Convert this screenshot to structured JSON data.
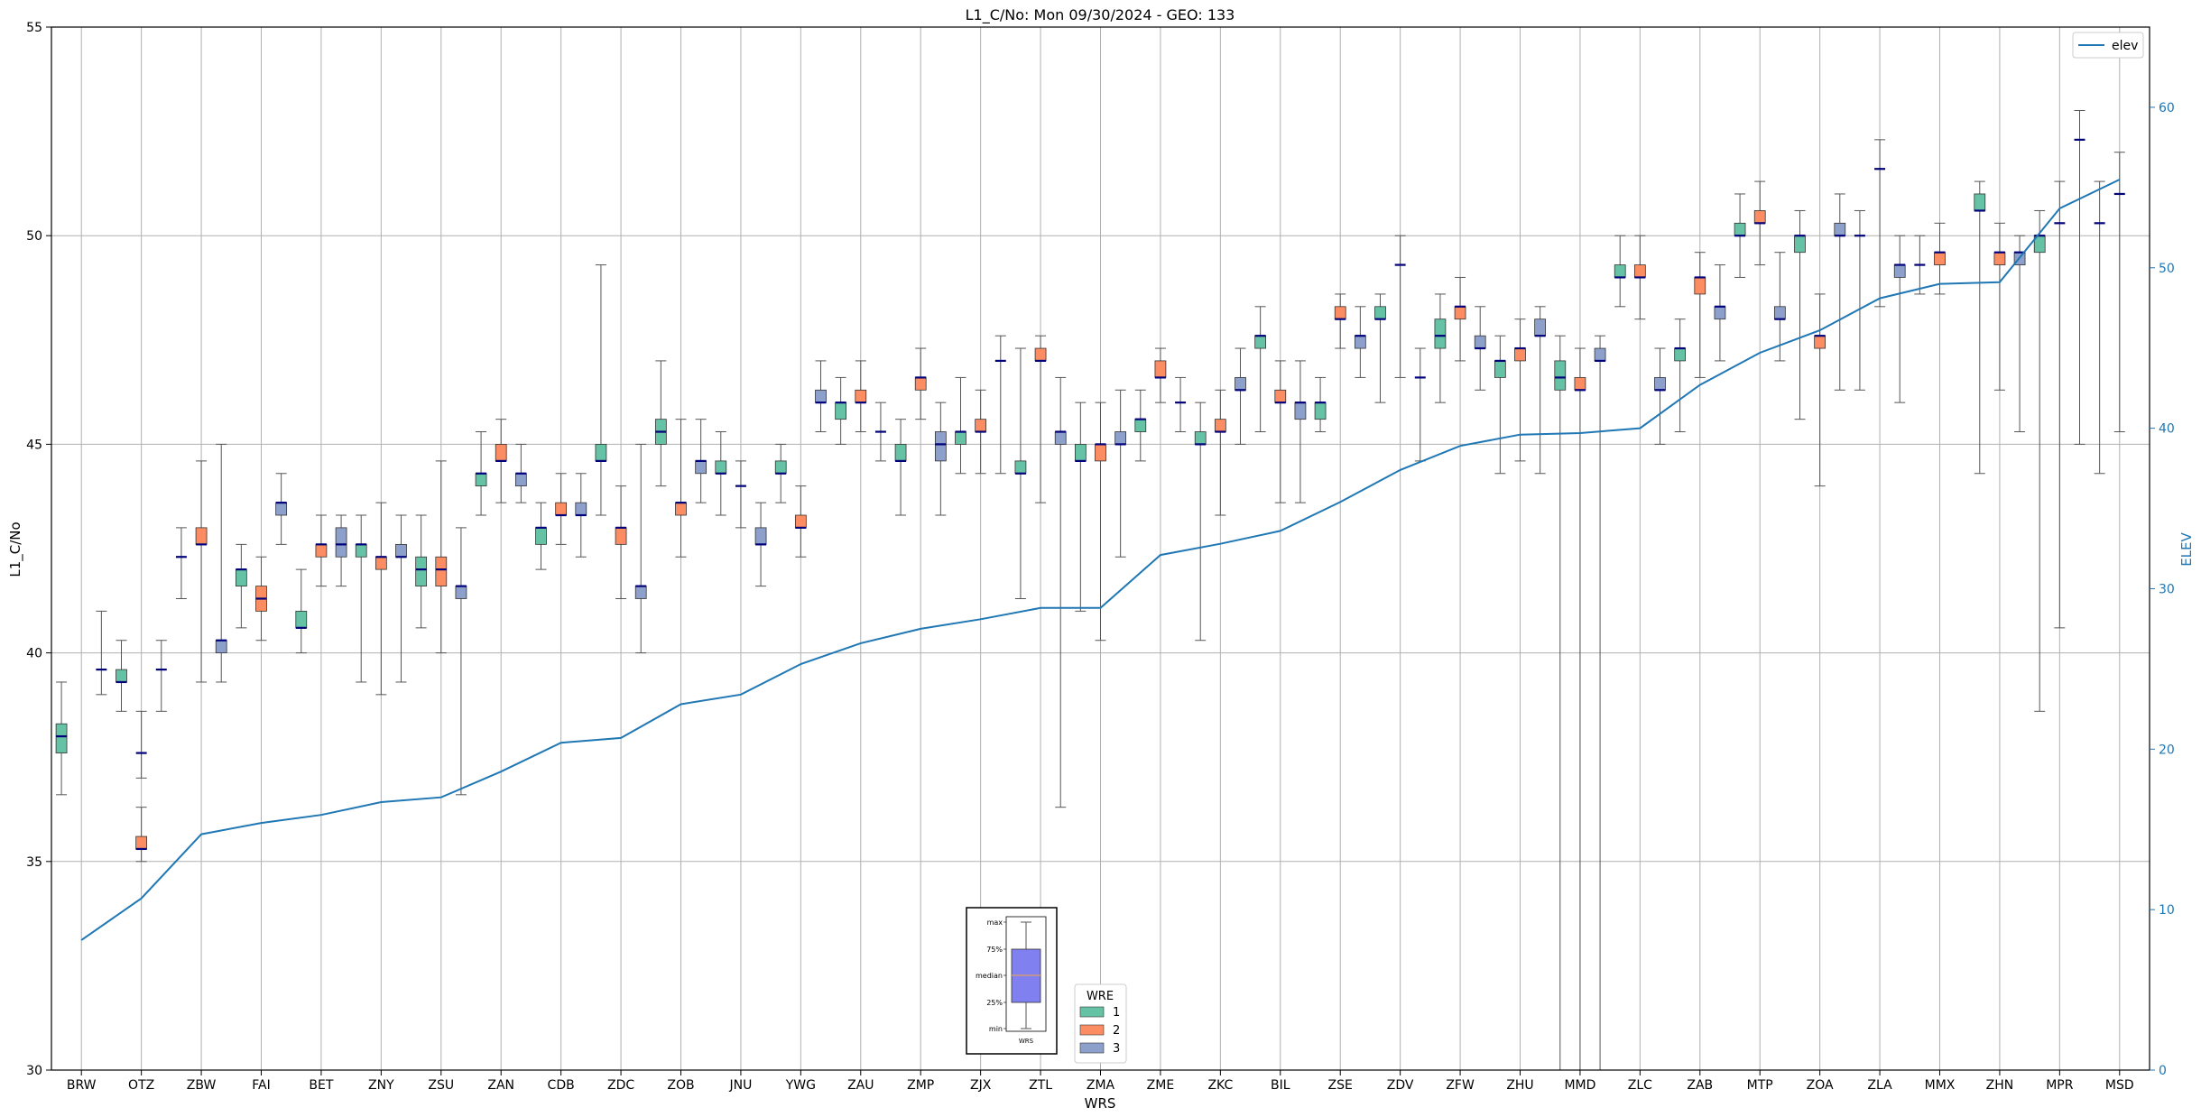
{
  "chart_data": {
    "type": "box",
    "title": "L1_C/No: Mon 09/30/2024 - GEO: 133",
    "xlabel": "WRS",
    "ylabel": "L1_C/No",
    "y2label": "ELEV",
    "ylim": [
      30,
      55
    ],
    "y2lim": [
      0,
      65
    ],
    "yticks": [
      30,
      35,
      40,
      45,
      50,
      55
    ],
    "y2ticks": [
      0,
      10,
      20,
      30,
      40,
      50,
      60
    ],
    "grid": true,
    "categories": [
      "BRW",
      "OTZ",
      "ZBW",
      "FAI",
      "BET",
      "ZNY",
      "ZSU",
      "ZAN",
      "CDB",
      "ZDC",
      "ZOB",
      "JNU",
      "YWG",
      "ZAU",
      "ZMP",
      "ZJX",
      "ZTL",
      "ZMA",
      "ZME",
      "ZKC",
      "BIL",
      "ZSE",
      "ZDV",
      "ZFW",
      "ZHU",
      "MMD",
      "ZLC",
      "ZAB",
      "MTP",
      "ZOA",
      "ZLA",
      "MMX",
      "ZHN",
      "MPR",
      "MSD"
    ],
    "wre_colors": {
      "1": "#66c2a5",
      "2": "#fc8d62",
      "3": "#8da0cb"
    },
    "boxes": [
      {
        "station": "BRW",
        "wre": 1,
        "min": 36.6,
        "q1": 37.6,
        "median": 38.0,
        "q3": 38.3,
        "max": 39.3
      },
      {
        "station": "BRW",
        "wre": 3,
        "min": 39.0,
        "q1": 39.6,
        "median": 39.6,
        "q3": 39.6,
        "max": 41.0
      },
      {
        "station": "OTZ",
        "wre": 1,
        "min": 38.6,
        "q1": 39.3,
        "median": 39.3,
        "q3": 39.6,
        "max": 40.3
      },
      {
        "station": "OTZ",
        "wre": 2,
        "min": 37.0,
        "q1": 37.6,
        "median": 37.6,
        "q3": 37.6,
        "max": 38.6
      },
      {
        "station": "OTZ",
        "wre": 2,
        "min": 35.0,
        "q1": 35.3,
        "median": 35.3,
        "q3": 35.6,
        "max": 36.3
      },
      {
        "station": "OTZ",
        "wre": 3,
        "min": 38.6,
        "q1": 39.6,
        "median": 39.6,
        "q3": 39.6,
        "max": 40.3
      },
      {
        "station": "ZBW",
        "wre": 1,
        "min": 41.3,
        "q1": 42.3,
        "median": 42.3,
        "q3": 42.3,
        "max": 43.0
      },
      {
        "station": "ZBW",
        "wre": 2,
        "min": 39.3,
        "q1": 42.6,
        "median": 42.6,
        "q3": 43.0,
        "max": 44.6
      },
      {
        "station": "ZBW",
        "wre": 3,
        "min": 39.3,
        "q1": 40.0,
        "median": 40.3,
        "q3": 40.3,
        "max": 45.0
      },
      {
        "station": "FAI",
        "wre": 1,
        "min": 40.6,
        "q1": 41.6,
        "median": 42.0,
        "q3": 42.0,
        "max": 42.6
      },
      {
        "station": "FAI",
        "wre": 2,
        "min": 40.3,
        "q1": 41.0,
        "median": 41.3,
        "q3": 41.6,
        "max": 42.3
      },
      {
        "station": "FAI",
        "wre": 3,
        "min": 42.6,
        "q1": 43.3,
        "median": 43.6,
        "q3": 43.6,
        "max": 44.3
      },
      {
        "station": "BET",
        "wre": 1,
        "min": 40.0,
        "q1": 40.6,
        "median": 40.6,
        "q3": 41.0,
        "max": 42.0
      },
      {
        "station": "BET",
        "wre": 2,
        "min": 41.6,
        "q1": 42.3,
        "median": 42.6,
        "q3": 42.6,
        "max": 43.3
      },
      {
        "station": "BET",
        "wre": 3,
        "min": 41.6,
        "q1": 42.3,
        "median": 42.6,
        "q3": 43.0,
        "max": 43.3
      },
      {
        "station": "ZNY",
        "wre": 1,
        "min": 39.3,
        "q1": 42.3,
        "median": 42.6,
        "q3": 42.6,
        "max": 43.3
      },
      {
        "station": "ZNY",
        "wre": 2,
        "min": 39.0,
        "q1": 42.0,
        "median": 42.3,
        "q3": 42.3,
        "max": 43.6
      },
      {
        "station": "ZNY",
        "wre": 3,
        "min": 39.3,
        "q1": 42.3,
        "median": 42.3,
        "q3": 42.6,
        "max": 43.3
      },
      {
        "station": "ZSU",
        "wre": 1,
        "min": 40.6,
        "q1": 41.6,
        "median": 42.0,
        "q3": 42.3,
        "max": 43.3
      },
      {
        "station": "ZSU",
        "wre": 2,
        "min": 40.0,
        "q1": 41.6,
        "median": 42.0,
        "q3": 42.3,
        "max": 44.6
      },
      {
        "station": "ZSU",
        "wre": 3,
        "min": 36.6,
        "q1": 41.3,
        "median": 41.6,
        "q3": 41.6,
        "max": 43.0
      },
      {
        "station": "ZAN",
        "wre": 1,
        "min": 43.3,
        "q1": 44.0,
        "median": 44.3,
        "q3": 44.3,
        "max": 45.3
      },
      {
        "station": "ZAN",
        "wre": 2,
        "min": 43.6,
        "q1": 44.6,
        "median": 44.6,
        "q3": 45.0,
        "max": 45.6
      },
      {
        "station": "ZAN",
        "wre": 3,
        "min": 43.6,
        "q1": 44.0,
        "median": 44.3,
        "q3": 44.3,
        "max": 45.0
      },
      {
        "station": "CDB",
        "wre": 1,
        "min": 42.0,
        "q1": 42.6,
        "median": 43.0,
        "q3": 43.0,
        "max": 43.6
      },
      {
        "station": "CDB",
        "wre": 2,
        "min": 42.6,
        "q1": 43.3,
        "median": 43.3,
        "q3": 43.6,
        "max": 44.3
      },
      {
        "station": "CDB",
        "wre": 3,
        "min": 42.3,
        "q1": 43.3,
        "median": 43.3,
        "q3": 43.6,
        "max": 44.3
      },
      {
        "station": "ZDC",
        "wre": 1,
        "min": 43.3,
        "q1": 44.6,
        "median": 44.6,
        "q3": 45.0,
        "max": 49.3
      },
      {
        "station": "ZDC",
        "wre": 2,
        "min": 41.3,
        "q1": 42.6,
        "median": 43.0,
        "q3": 43.0,
        "max": 44.0
      },
      {
        "station": "ZDC",
        "wre": 3,
        "min": 40.0,
        "q1": 41.3,
        "median": 41.6,
        "q3": 41.6,
        "max": 45.0
      },
      {
        "station": "ZOB",
        "wre": 1,
        "min": 44.0,
        "q1": 45.0,
        "median": 45.3,
        "q3": 45.6,
        "max": 47.0
      },
      {
        "station": "ZOB",
        "wre": 2,
        "min": 42.3,
        "q1": 43.3,
        "median": 43.6,
        "q3": 43.6,
        "max": 45.6
      },
      {
        "station": "ZOB",
        "wre": 3,
        "min": 43.6,
        "q1": 44.3,
        "median": 44.6,
        "q3": 44.6,
        "max": 45.6
      },
      {
        "station": "JNU",
        "wre": 1,
        "min": 43.3,
        "q1": 44.3,
        "median": 44.3,
        "q3": 44.6,
        "max": 45.3
      },
      {
        "station": "JNU",
        "wre": 2,
        "min": 43.0,
        "q1": 44.0,
        "median": 44.0,
        "q3": 44.0,
        "max": 44.6
      },
      {
        "station": "JNU",
        "wre": 3,
        "min": 41.6,
        "q1": 42.6,
        "median": 42.6,
        "q3": 43.0,
        "max": 43.6
      },
      {
        "station": "YWG",
        "wre": 1,
        "min": 43.6,
        "q1": 44.3,
        "median": 44.3,
        "q3": 44.6,
        "max": 45.0
      },
      {
        "station": "YWG",
        "wre": 2,
        "min": 42.3,
        "q1": 43.0,
        "median": 43.0,
        "q3": 43.3,
        "max": 44.0
      },
      {
        "station": "YWG",
        "wre": 3,
        "min": 45.3,
        "q1": 46.0,
        "median": 46.0,
        "q3": 46.3,
        "max": 47.0
      },
      {
        "station": "ZAU",
        "wre": 1,
        "min": 45.0,
        "q1": 45.6,
        "median": 46.0,
        "q3": 46.0,
        "max": 46.6
      },
      {
        "station": "ZAU",
        "wre": 2,
        "min": 45.3,
        "q1": 46.0,
        "median": 46.0,
        "q3": 46.3,
        "max": 47.0
      },
      {
        "station": "ZAU",
        "wre": 3,
        "min": 44.6,
        "q1": 45.3,
        "median": 45.3,
        "q3": 45.3,
        "max": 46.0
      },
      {
        "station": "ZMP",
        "wre": 1,
        "min": 43.3,
        "q1": 44.6,
        "median": 44.6,
        "q3": 45.0,
        "max": 45.6
      },
      {
        "station": "ZMP",
        "wre": 2,
        "min": 45.6,
        "q1": 46.3,
        "median": 46.6,
        "q3": 46.6,
        "max": 47.3
      },
      {
        "station": "ZMP",
        "wre": 3,
        "min": 43.3,
        "q1": 44.6,
        "median": 45.0,
        "q3": 45.3,
        "max": 46.0
      },
      {
        "station": "ZJX",
        "wre": 1,
        "min": 44.3,
        "q1": 45.0,
        "median": 45.3,
        "q3": 45.3,
        "max": 46.6
      },
      {
        "station": "ZJX",
        "wre": 2,
        "min": 44.3,
        "q1": 45.3,
        "median": 45.3,
        "q3": 45.6,
        "max": 46.3
      },
      {
        "station": "ZJX",
        "wre": 3,
        "min": 44.3,
        "q1": 47.0,
        "median": 47.0,
        "q3": 47.0,
        "max": 47.6
      },
      {
        "station": "ZTL",
        "wre": 1,
        "min": 41.3,
        "q1": 44.3,
        "median": 44.3,
        "q3": 44.6,
        "max": 47.3
      },
      {
        "station": "ZTL",
        "wre": 2,
        "min": 43.6,
        "q1": 47.0,
        "median": 47.0,
        "q3": 47.3,
        "max": 47.6
      },
      {
        "station": "ZTL",
        "wre": 3,
        "min": 36.3,
        "q1": 45.0,
        "median": 45.3,
        "q3": 45.3,
        "max": 46.6
      },
      {
        "station": "ZMA",
        "wre": 1,
        "min": 41.0,
        "q1": 44.6,
        "median": 44.6,
        "q3": 45.0,
        "max": 46.0
      },
      {
        "station": "ZMA",
        "wre": 2,
        "min": 40.3,
        "q1": 44.6,
        "median": 45.0,
        "q3": 45.0,
        "max": 46.0
      },
      {
        "station": "ZMA",
        "wre": 3,
        "min": 42.3,
        "q1": 45.0,
        "median": 45.0,
        "q3": 45.3,
        "max": 46.3
      },
      {
        "station": "ZME",
        "wre": 1,
        "min": 44.6,
        "q1": 45.3,
        "median": 45.6,
        "q3": 45.6,
        "max": 46.3
      },
      {
        "station": "ZME",
        "wre": 2,
        "min": 46.0,
        "q1": 46.6,
        "median": 46.6,
        "q3": 47.0,
        "max": 47.3
      },
      {
        "station": "ZME",
        "wre": 3,
        "min": 45.3,
        "q1": 46.0,
        "median": 46.0,
        "q3": 46.0,
        "max": 46.6
      },
      {
        "station": "ZKC",
        "wre": 1,
        "min": 40.3,
        "q1": 45.0,
        "median": 45.0,
        "q3": 45.3,
        "max": 46.0
      },
      {
        "station": "ZKC",
        "wre": 2,
        "min": 43.3,
        "q1": 45.3,
        "median": 45.3,
        "q3": 45.6,
        "max": 46.3
      },
      {
        "station": "ZKC",
        "wre": 3,
        "min": 45.0,
        "q1": 46.3,
        "median": 46.3,
        "q3": 46.6,
        "max": 47.3
      },
      {
        "station": "BIL",
        "wre": 1,
        "min": 45.3,
        "q1": 47.3,
        "median": 47.6,
        "q3": 47.6,
        "max": 48.3
      },
      {
        "station": "BIL",
        "wre": 2,
        "min": 43.6,
        "q1": 46.0,
        "median": 46.0,
        "q3": 46.3,
        "max": 47.0
      },
      {
        "station": "BIL",
        "wre": 3,
        "min": 43.6,
        "q1": 45.6,
        "median": 46.0,
        "q3": 46.0,
        "max": 47.0
      },
      {
        "station": "ZSE",
        "wre": 1,
        "min": 45.3,
        "q1": 45.6,
        "median": 46.0,
        "q3": 46.0,
        "max": 46.6
      },
      {
        "station": "ZSE",
        "wre": 2,
        "min": 47.3,
        "q1": 48.0,
        "median": 48.0,
        "q3": 48.3,
        "max": 48.6
      },
      {
        "station": "ZSE",
        "wre": 3,
        "min": 46.6,
        "q1": 47.3,
        "median": 47.6,
        "q3": 47.6,
        "max": 48.3
      },
      {
        "station": "ZDV",
        "wre": 1,
        "min": 46.0,
        "q1": 48.0,
        "median": 48.0,
        "q3": 48.3,
        "max": 48.6
      },
      {
        "station": "ZDV",
        "wre": 2,
        "min": 46.6,
        "q1": 49.3,
        "median": 49.3,
        "q3": 49.3,
        "max": 50.0
      },
      {
        "station": "ZDV",
        "wre": 3,
        "min": 44.6,
        "q1": 46.6,
        "median": 46.6,
        "q3": 46.6,
        "max": 47.3
      },
      {
        "station": "ZFW",
        "wre": 1,
        "min": 46.0,
        "q1": 47.3,
        "median": 47.6,
        "q3": 48.0,
        "max": 48.6
      },
      {
        "station": "ZFW",
        "wre": 2,
        "min": 47.0,
        "q1": 48.0,
        "median": 48.3,
        "q3": 48.3,
        "max": 49.0
      },
      {
        "station": "ZFW",
        "wre": 3,
        "min": 46.3,
        "q1": 47.3,
        "median": 47.3,
        "q3": 47.6,
        "max": 48.3
      },
      {
        "station": "ZHU",
        "wre": 1,
        "min": 44.3,
        "q1": 46.6,
        "median": 47.0,
        "q3": 47.0,
        "max": 47.6
      },
      {
        "station": "ZHU",
        "wre": 2,
        "min": 44.6,
        "q1": 47.0,
        "median": 47.3,
        "q3": 47.3,
        "max": 48.0
      },
      {
        "station": "ZHU",
        "wre": 3,
        "min": 44.3,
        "q1": 47.6,
        "median": 47.6,
        "q3": 48.0,
        "max": 48.3
      },
      {
        "station": "MMD",
        "wre": 1,
        "min": 30.0,
        "q1": 46.3,
        "median": 46.6,
        "q3": 47.0,
        "max": 47.6
      },
      {
        "station": "MMD",
        "wre": 2,
        "min": 30.0,
        "q1": 46.3,
        "median": 46.3,
        "q3": 46.6,
        "max": 47.3
      },
      {
        "station": "MMD",
        "wre": 3,
        "min": 30.0,
        "q1": 47.0,
        "median": 47.0,
        "q3": 47.3,
        "max": 47.6
      },
      {
        "station": "ZLC",
        "wre": 1,
        "min": 48.3,
        "q1": 49.0,
        "median": 49.0,
        "q3": 49.3,
        "max": 50.0
      },
      {
        "station": "ZLC",
        "wre": 2,
        "min": 48.0,
        "q1": 49.0,
        "median": 49.0,
        "q3": 49.3,
        "max": 50.0
      },
      {
        "station": "ZLC",
        "wre": 3,
        "min": 45.0,
        "q1": 46.3,
        "median": 46.3,
        "q3": 46.6,
        "max": 47.3
      },
      {
        "station": "ZAB",
        "wre": 1,
        "min": 45.3,
        "q1": 47.0,
        "median": 47.3,
        "q3": 47.3,
        "max": 48.0
      },
      {
        "station": "ZAB",
        "wre": 2,
        "min": 46.6,
        "q1": 48.6,
        "median": 49.0,
        "q3": 49.0,
        "max": 49.6
      },
      {
        "station": "ZAB",
        "wre": 3,
        "min": 47.0,
        "q1": 48.0,
        "median": 48.3,
        "q3": 48.3,
        "max": 49.3
      },
      {
        "station": "MTP",
        "wre": 1,
        "min": 49.0,
        "q1": 50.0,
        "median": 50.0,
        "q3": 50.3,
        "max": 51.0
      },
      {
        "station": "MTP",
        "wre": 2,
        "min": 49.3,
        "q1": 50.3,
        "median": 50.3,
        "q3": 50.6,
        "max": 51.3
      },
      {
        "station": "MTP",
        "wre": 3,
        "min": 47.0,
        "q1": 48.0,
        "median": 48.0,
        "q3": 48.3,
        "max": 49.6
      },
      {
        "station": "ZOA",
        "wre": 1,
        "min": 45.6,
        "q1": 49.6,
        "median": 50.0,
        "q3": 50.0,
        "max": 50.6
      },
      {
        "station": "ZOA",
        "wre": 2,
        "min": 44.0,
        "q1": 47.3,
        "median": 47.6,
        "q3": 47.6,
        "max": 48.6
      },
      {
        "station": "ZOA",
        "wre": 3,
        "min": 46.3,
        "q1": 50.0,
        "median": 50.0,
        "q3": 50.3,
        "max": 51.0
      },
      {
        "station": "ZLA",
        "wre": 1,
        "min": 46.3,
        "q1": 50.0,
        "median": 50.0,
        "q3": 50.0,
        "max": 50.6
      },
      {
        "station": "ZLA",
        "wre": 2,
        "min": 48.3,
        "q1": 51.6,
        "median": 51.6,
        "q3": 51.6,
        "max": 52.3
      },
      {
        "station": "ZLA",
        "wre": 3,
        "min": 46.0,
        "q1": 49.0,
        "median": 49.3,
        "q3": 49.3,
        "max": 50.0
      },
      {
        "station": "MMX",
        "wre": 1,
        "min": 48.6,
        "q1": 49.3,
        "median": 49.3,
        "q3": 49.3,
        "max": 50.0
      },
      {
        "station": "MMX",
        "wre": 2,
        "min": 48.6,
        "q1": 49.3,
        "median": 49.6,
        "q3": 49.6,
        "max": 50.3
      },
      {
        "station": "ZHN",
        "wre": 1,
        "min": 44.3,
        "q1": 50.6,
        "median": 50.6,
        "q3": 51.0,
        "max": 51.3
      },
      {
        "station": "ZHN",
        "wre": 2,
        "min": 46.3,
        "q1": 49.3,
        "median": 49.6,
        "q3": 49.6,
        "max": 50.3
      },
      {
        "station": "ZHN",
        "wre": 3,
        "min": 45.3,
        "q1": 49.3,
        "median": 49.6,
        "q3": 49.6,
        "max": 50.0
      },
      {
        "station": "MPR",
        "wre": 1,
        "min": 38.6,
        "q1": 49.6,
        "median": 50.0,
        "q3": 50.0,
        "max": 50.6
      },
      {
        "station": "MPR",
        "wre": 2,
        "min": 40.6,
        "q1": 50.3,
        "median": 50.3,
        "q3": 50.3,
        "max": 51.3
      },
      {
        "station": "MPR",
        "wre": 3,
        "min": 45.0,
        "q1": 52.3,
        "median": 52.3,
        "q3": 52.3,
        "max": 53.0
      },
      {
        "station": "MSD",
        "wre": 1,
        "min": 44.3,
        "q1": 50.3,
        "median": 50.3,
        "q3": 50.3,
        "max": 51.3
      },
      {
        "station": "MSD",
        "wre": 2,
        "min": 45.3,
        "q1": 51.0,
        "median": 51.0,
        "q3": 51.0,
        "max": 52.0
      }
    ],
    "series": [
      {
        "name": "elev",
        "axis": "right",
        "color": "#1f77b4",
        "values": [
          8.1,
          10.7,
          14.7,
          15.4,
          15.9,
          16.7,
          17.0,
          18.6,
          20.4,
          20.7,
          22.8,
          23.4,
          25.3,
          26.6,
          27.5,
          28.1,
          28.8,
          28.8,
          32.1,
          32.8,
          33.6,
          35.4,
          37.4,
          38.9,
          39.6,
          39.7,
          40.0,
          42.7,
          44.7,
          46.1,
          48.1,
          49.0,
          49.1,
          53.7,
          55.5
        ]
      }
    ],
    "legend_elev": {
      "label": "elev",
      "placement": "top-right"
    },
    "legend_wre": {
      "title": "WRE",
      "entries": [
        "1",
        "2",
        "3"
      ],
      "placement": "bottom-center"
    },
    "inset_key": {
      "labels": [
        "max",
        "75%",
        "median",
        "25%",
        "min"
      ],
      "xlabel": "WRS"
    }
  }
}
